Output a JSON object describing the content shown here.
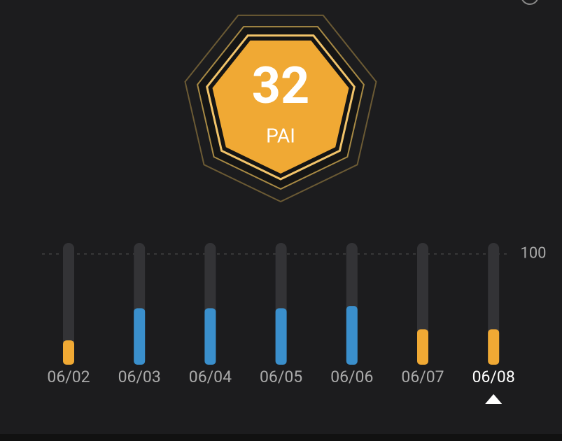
{
  "score": {
    "value": "32",
    "label": "PAI"
  },
  "chart_data": {
    "type": "bar",
    "categories": [
      "06/02",
      "06/03",
      "06/04",
      "06/05",
      "06/06",
      "06/07",
      "06/08"
    ],
    "values": [
      22,
      51,
      51,
      51,
      53,
      32,
      32
    ],
    "colors": [
      "#f0a934",
      "#3a8fcc",
      "#3a8fcc",
      "#3a8fcc",
      "#3a8fcc",
      "#f0a934",
      "#f0a934"
    ],
    "ylim": [
      0,
      110
    ],
    "yticks": [
      100
    ],
    "grid": true,
    "selected": 6
  }
}
